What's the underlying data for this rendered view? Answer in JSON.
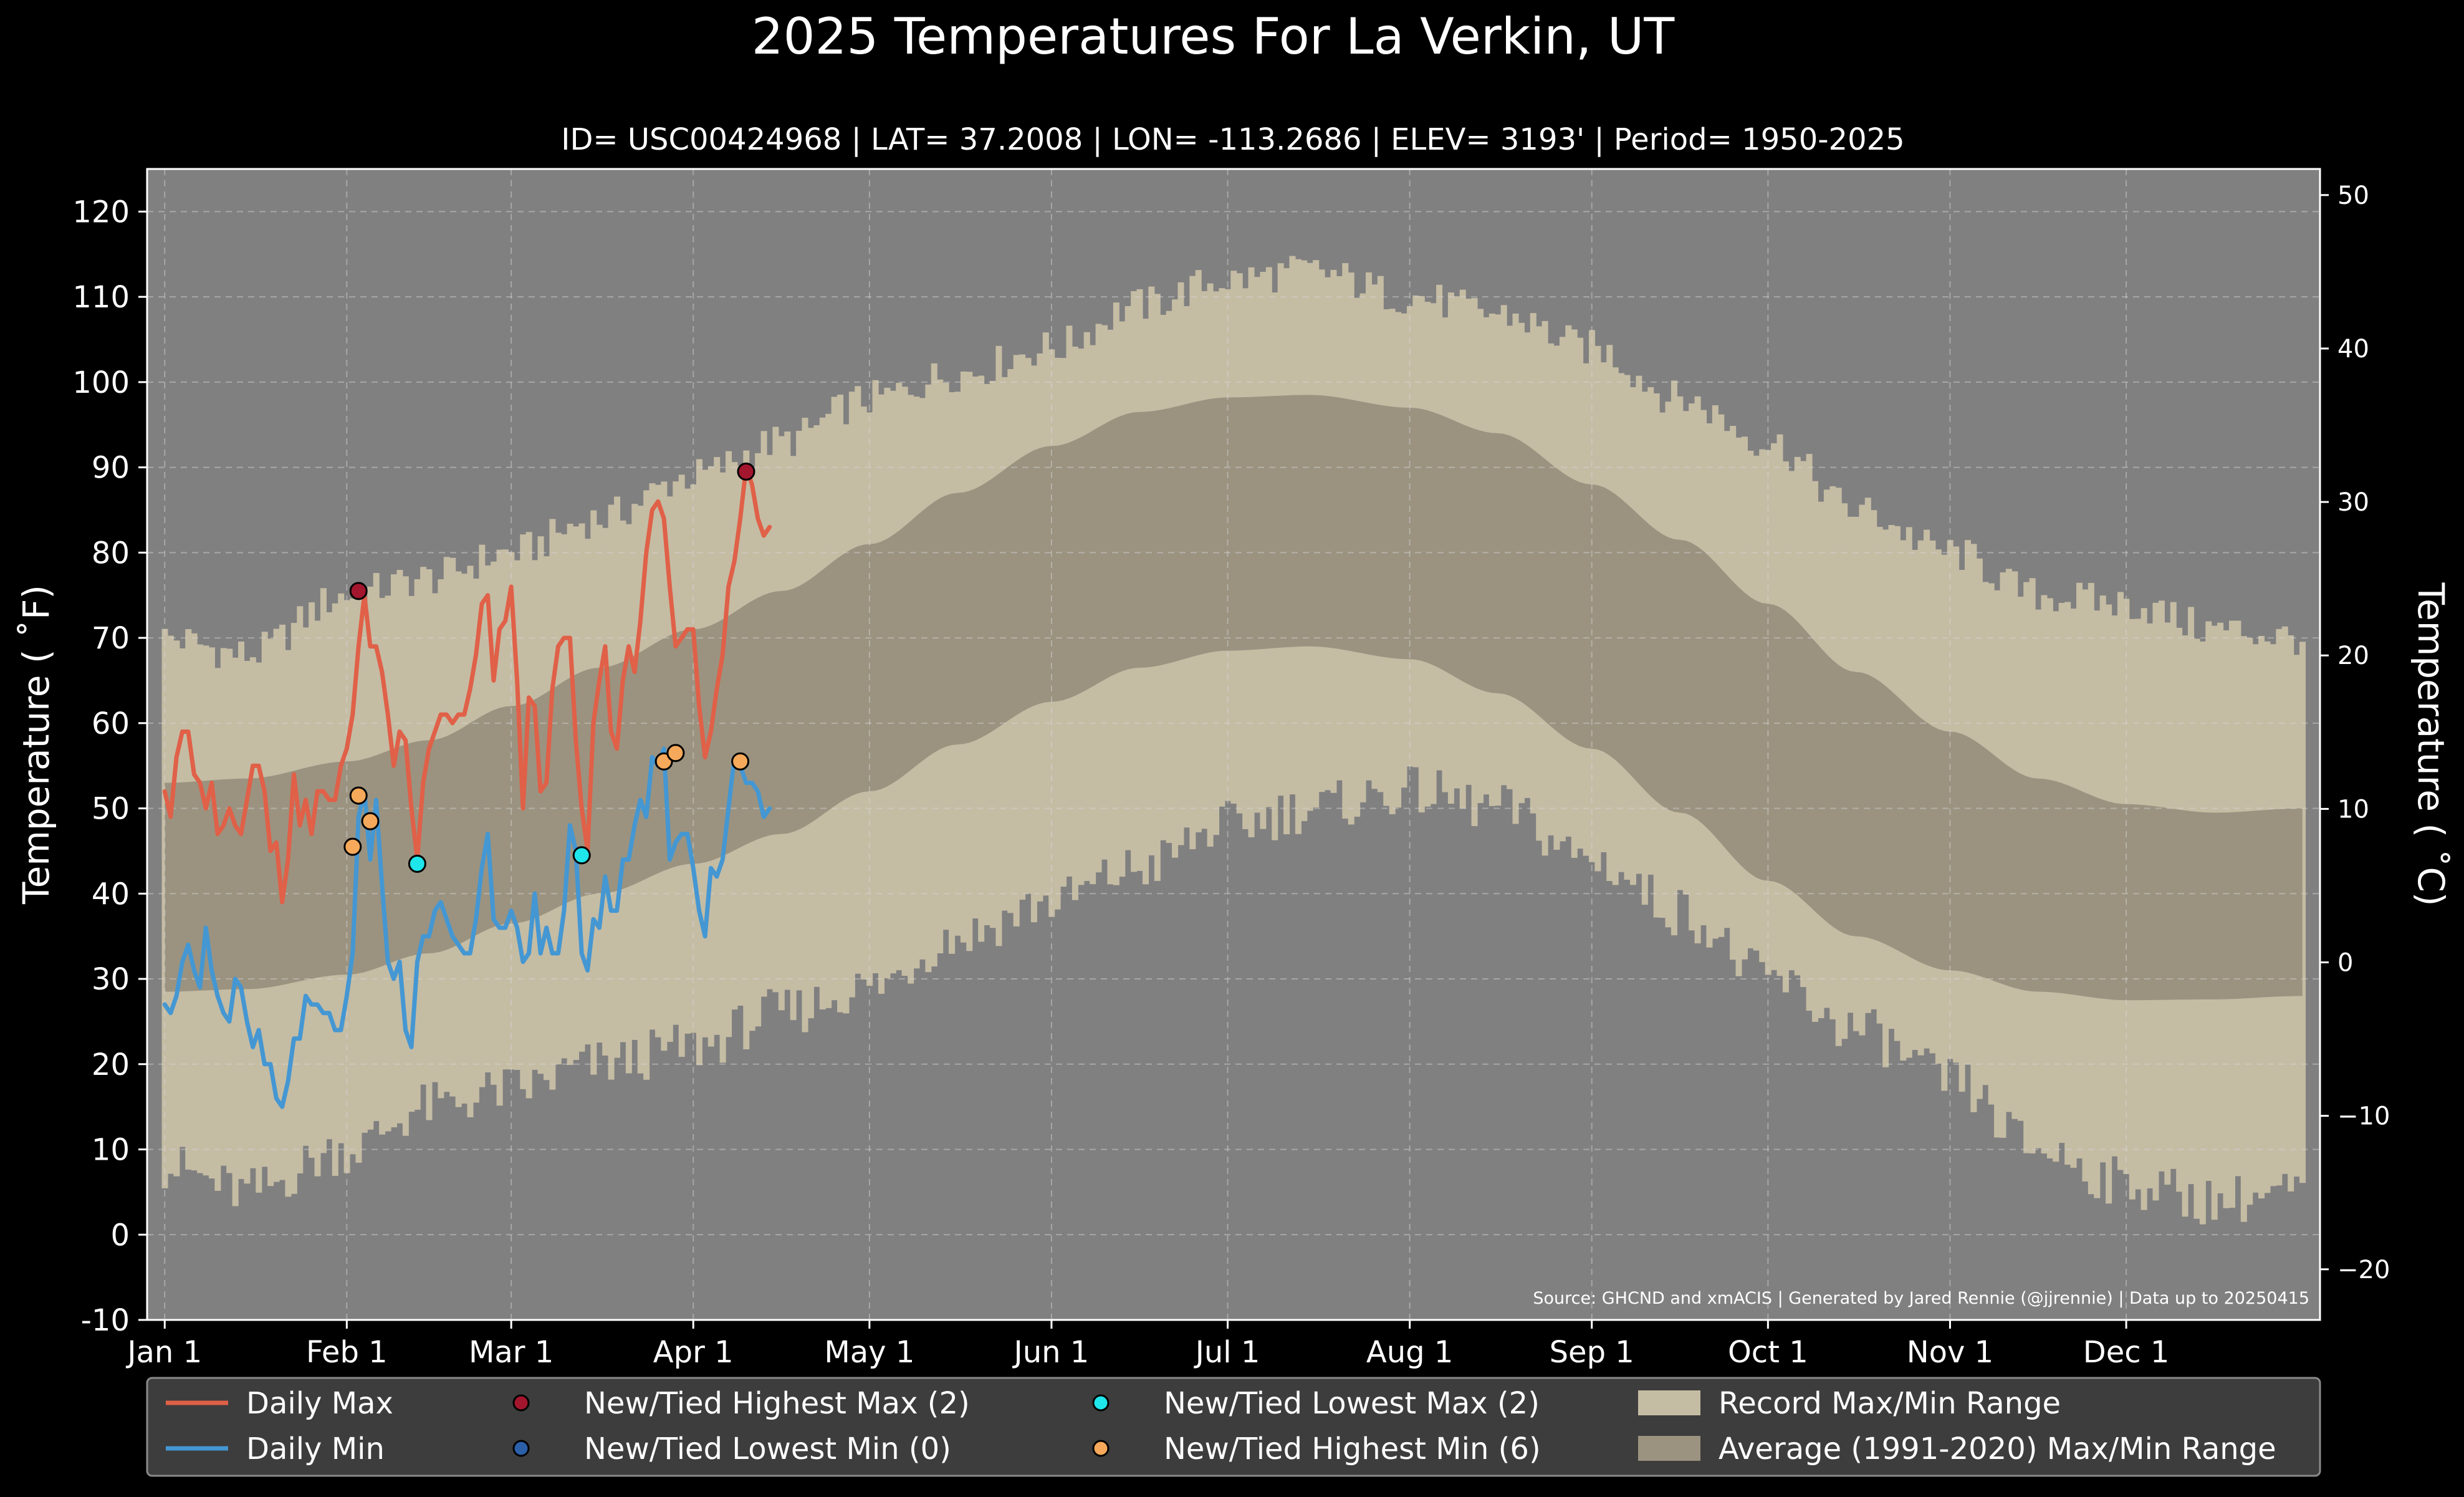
{
  "chart_data": {
    "type": "line",
    "title": "2025 Temperatures For La Verkin, UT",
    "subtitle": "ID= USC00424968 | LAT= 37.2008 | LON= -113.2686 | ELEV= 3193' | Period= 1950-2025",
    "ylabel": "Temperature ( ˚F)",
    "ylabel_right": "Temperature ( ˚C)",
    "source": "Source: GHCND and xmACIS | Generated by Jared Rennie (@jjrennie) | Data up to 20250415",
    "ylim": [
      -10,
      125
    ],
    "ylim_right_celsius": [
      -23.3,
      51.7
    ],
    "xlim_day_of_year": [
      -2,
      368
    ],
    "grid": true,
    "legend_position": "bottom",
    "x_ticks": [
      {
        "label": "Jan 1",
        "day": 1
      },
      {
        "label": "Feb 1",
        "day": 32
      },
      {
        "label": "Mar 1",
        "day": 60
      },
      {
        "label": "Apr 1",
        "day": 91
      },
      {
        "label": "May 1",
        "day": 121
      },
      {
        "label": "Jun 1",
        "day": 152
      },
      {
        "label": "Jul 1",
        "day": 182
      },
      {
        "label": "Aug 1",
        "day": 213
      },
      {
        "label": "Sep 1",
        "day": 244
      },
      {
        "label": "Oct 1",
        "day": 274
      },
      {
        "label": "Nov 1",
        "day": 305
      },
      {
        "label": "Dec 1",
        "day": 335
      }
    ],
    "y_ticks": [
      -10,
      0,
      10,
      20,
      30,
      40,
      50,
      60,
      70,
      80,
      90,
      100,
      110,
      120
    ],
    "y_ticks_right": [
      -20,
      -10,
      0,
      10,
      20,
      30,
      40,
      50
    ],
    "colors": {
      "background": "#000000",
      "plot_background": "#808080",
      "record_range": "#c5bca4",
      "normal_range": "#9b9380",
      "daily_max": "#e06048",
      "daily_min": "#4497d2",
      "highest_max_marker": "#a3162e",
      "lowest_min_marker": "#2b5fa8",
      "lowest_max_marker": "#1ee6ea",
      "highest_min_marker": "#f6a95a",
      "legend_background": "#3d3d3d"
    },
    "record_range": {
      "anchor_days": [
        1,
        15,
        32,
        46,
        60,
        75,
        91,
        106,
        121,
        136,
        152,
        167,
        182,
        196,
        213,
        228,
        244,
        259,
        274,
        289,
        305,
        320,
        335,
        350,
        365
      ],
      "record_max": [
        70,
        68,
        75,
        77,
        80,
        84,
        89,
        93,
        98,
        101,
        104,
        109,
        112,
        113,
        110,
        108,
        104,
        98,
        93,
        85,
        80,
        75,
        74,
        71,
        70
      ],
      "record_min": [
        8,
        5,
        10,
        15,
        17,
        20,
        22,
        26,
        29,
        35,
        39,
        43,
        48,
        50,
        52,
        50,
        44,
        38,
        30,
        24,
        18,
        10,
        6,
        4,
        5
      ]
    },
    "normal_range": {
      "anchor_days": [
        1,
        15,
        32,
        46,
        60,
        75,
        91,
        106,
        121,
        136,
        152,
        167,
        182,
        196,
        213,
        228,
        244,
        259,
        274,
        289,
        305,
        320,
        335,
        350,
        365
      ],
      "normal_max": [
        53,
        53.5,
        55.5,
        58,
        62,
        66.5,
        71,
        75.5,
        81,
        87,
        92.5,
        96.5,
        98.2,
        98.5,
        97,
        94,
        88,
        81.5,
        74,
        66,
        59,
        53.5,
        50.5,
        49.5,
        50
      ],
      "normal_min": [
        28.5,
        28.8,
        30.5,
        33,
        36.5,
        40,
        43.5,
        47,
        52,
        57.5,
        62.5,
        66.5,
        68.5,
        69,
        67.5,
        63.5,
        57,
        49.5,
        41.5,
        35,
        31,
        28.5,
        27.5,
        27.6,
        28
      ]
    },
    "series": [
      {
        "name": "Daily Max",
        "start_day": 1,
        "values": [
          52,
          49,
          56,
          59,
          59,
          54,
          53,
          50,
          53,
          47,
          48,
          50,
          48,
          47,
          51,
          55,
          55,
          52,
          45,
          46,
          39,
          44,
          54,
          48,
          51,
          47,
          52,
          52,
          51,
          51,
          55,
          57,
          61,
          69,
          75,
          69,
          69,
          66,
          61,
          55,
          59,
          58,
          50,
          44,
          53,
          57,
          59,
          61,
          61,
          60,
          61,
          61,
          64,
          68,
          74,
          75,
          65,
          71,
          72,
          76,
          65,
          50,
          63,
          62,
          52,
          53,
          64,
          69,
          70,
          70,
          58,
          50,
          45,
          60,
          65,
          69,
          59,
          57,
          65,
          69,
          66,
          72,
          80,
          85,
          86,
          84,
          76,
          69,
          70,
          71,
          71,
          62,
          56,
          59,
          64,
          68,
          76,
          79,
          84,
          90,
          88,
          84,
          82,
          83
        ]
      },
      {
        "name": "Daily Min",
        "start_day": 1,
        "values": [
          27,
          26,
          28,
          32,
          34,
          31,
          29,
          36,
          31,
          28,
          26,
          25,
          30,
          29,
          25,
          22,
          24,
          20,
          20,
          16,
          15,
          18,
          23,
          23,
          28,
          27,
          27,
          26,
          26,
          24,
          24,
          28,
          33,
          49,
          52,
          44,
          51,
          41,
          32,
          30,
          32,
          24,
          22,
          32,
          35,
          35,
          38,
          39,
          37,
          35,
          34,
          33,
          33,
          37,
          43,
          47,
          37,
          36,
          36,
          38,
          36,
          32,
          33,
          40,
          33,
          36,
          33,
          33,
          38,
          48,
          45,
          33,
          31,
          37,
          36,
          42,
          38,
          38,
          44,
          44,
          48,
          51,
          49,
          56,
          55,
          57,
          44,
          46,
          47,
          47,
          43,
          38,
          35,
          43,
          42,
          44,
          50,
          56,
          55,
          53,
          53,
          52,
          49,
          50
        ]
      }
    ],
    "record_points": [
      {
        "series": "New/Tied Highest Max (2)",
        "day": 34,
        "value": 75.5
      },
      {
        "series": "New/Tied Highest Max (2)",
        "day": 100,
        "value": 89.5
      },
      {
        "series": "New/Tied Lowest Max (2)",
        "day": 44,
        "value": 43.5
      },
      {
        "series": "New/Tied Lowest Max (2)",
        "day": 72,
        "value": 44.5
      },
      {
        "series": "New/Tied Highest Min (6)",
        "day": 33,
        "value": 45.5
      },
      {
        "series": "New/Tied Highest Min (6)",
        "day": 34,
        "value": 51.5
      },
      {
        "series": "New/Tied Highest Min (6)",
        "day": 36,
        "value": 48.5
      },
      {
        "series": "New/Tied Highest Min (6)",
        "day": 86,
        "value": 55.5
      },
      {
        "series": "New/Tied Highest Min (6)",
        "day": 88,
        "value": 56.5
      },
      {
        "series": "New/Tied Highest Min (6)",
        "day": 99,
        "value": 55.5
      }
    ],
    "legend": [
      {
        "label": "Daily Max",
        "kind": "line",
        "color": "#e06048"
      },
      {
        "label": "Daily Min",
        "kind": "line",
        "color": "#4497d2"
      },
      {
        "label": "New/Tied Highest Max (2)",
        "kind": "marker",
        "color": "#a3162e"
      },
      {
        "label": "New/Tied Lowest Min (0)",
        "kind": "marker",
        "color": "#2b5fa8"
      },
      {
        "label": "New/Tied Lowest Max (2)",
        "kind": "marker",
        "color": "#1ee6ea"
      },
      {
        "label": "New/Tied Highest Min (6)",
        "kind": "marker",
        "color": "#f6a95a"
      },
      {
        "label": "Record Max/Min Range",
        "kind": "patch",
        "color": "#c5bca4"
      },
      {
        "label": "Average (1991-2020) Max/Min Range",
        "kind": "patch",
        "color": "#9b9380"
      }
    ]
  }
}
